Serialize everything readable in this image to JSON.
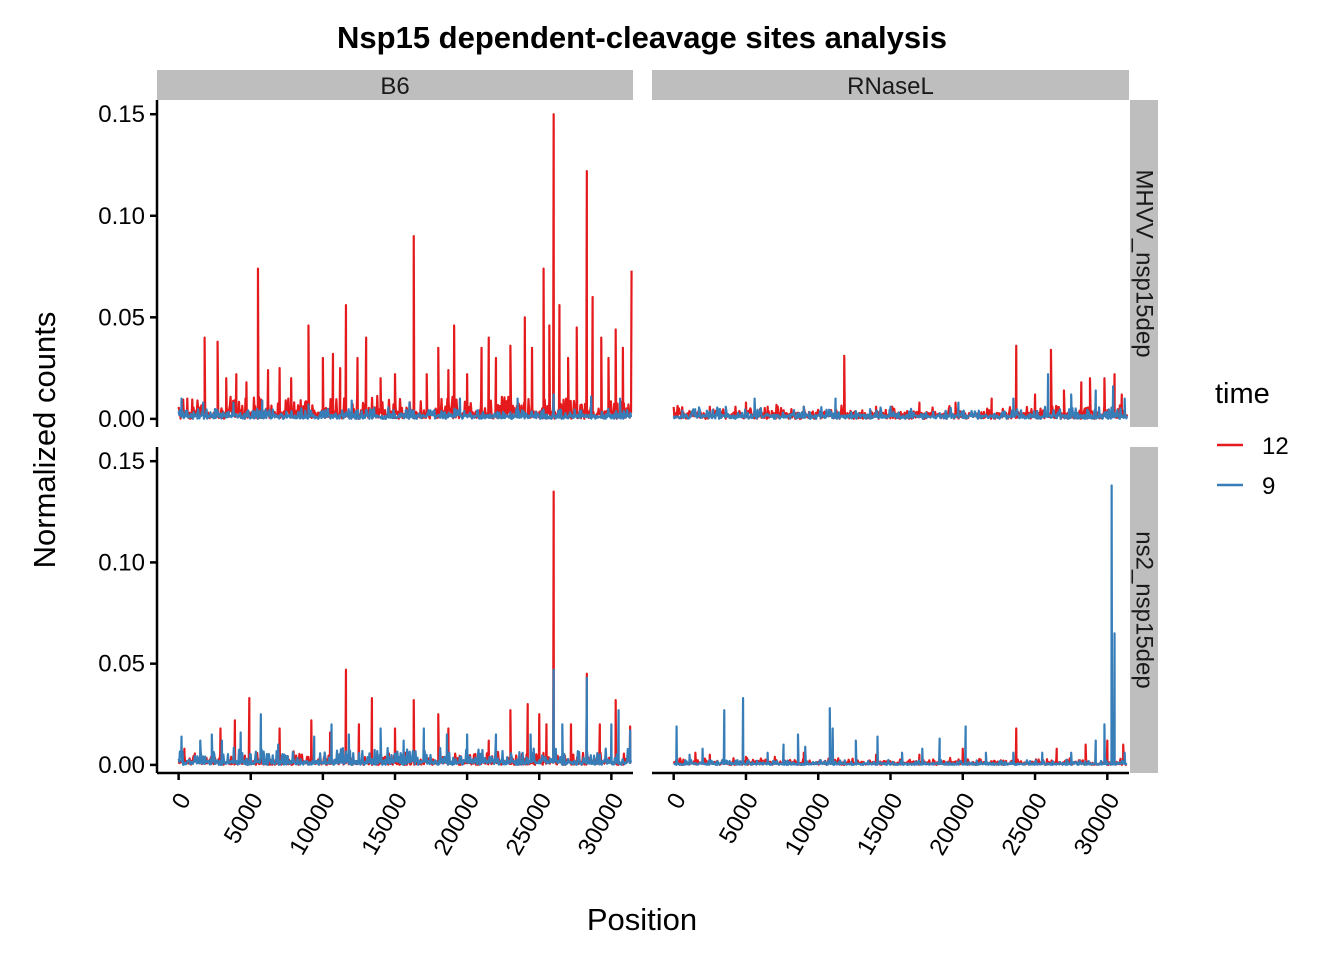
{
  "chart_data": {
    "type": "line",
    "title": "Nsp15 dependent-cleavage sites analysis",
    "xlabel": "Position",
    "ylabel": "Normalized counts",
    "xlim": [
      -1500,
      31500
    ],
    "ylim": [
      -0.004,
      0.157
    ],
    "x_ticks": [
      0,
      5000,
      10000,
      15000,
      20000,
      25000,
      30000
    ],
    "x_tick_labels": [
      "0",
      "5000",
      "10000",
      "15000",
      "20000",
      "25000",
      "30000"
    ],
    "y_ticks": [
      0,
      0.05,
      0.1,
      0.15
    ],
    "y_tick_labels": [
      "0.00",
      "0.05",
      "0.10",
      "0.15"
    ],
    "grid": false,
    "legend": {
      "title": "time",
      "position": "right",
      "items": [
        {
          "label": "12",
          "color": "#e41a1c"
        },
        {
          "label": "9",
          "color": "#377eb8"
        }
      ]
    },
    "columns": [
      "B6",
      "RNaseL"
    ],
    "rows": [
      "MHVV_nsp15dep",
      "ns2_nsp15dep"
    ],
    "panels": [
      {
        "col": "B6",
        "row": "MHVV_nsp15dep",
        "series": [
          {
            "name": "12",
            "color": "#e41a1c",
            "baseline": 0.004,
            "noise": 0.008,
            "peaks": [
              [
                600,
                0.01
              ],
              [
                1800,
                0.04
              ],
              [
                2700,
                0.038
              ],
              [
                3300,
                0.02
              ],
              [
                4000,
                0.022
              ],
              [
                4700,
                0.018
              ],
              [
                5500,
                0.074
              ],
              [
                6200,
                0.024
              ],
              [
                7000,
                0.025
              ],
              [
                7800,
                0.02
              ],
              [
                9000,
                0.046
              ],
              [
                10000,
                0.03
              ],
              [
                10700,
                0.032
              ],
              [
                11200,
                0.025
              ],
              [
                11600,
                0.056
              ],
              [
                12400,
                0.03
              ],
              [
                13000,
                0.04
              ],
              [
                14000,
                0.02
              ],
              [
                15000,
                0.022
              ],
              [
                16300,
                0.09
              ],
              [
                17200,
                0.022
              ],
              [
                18000,
                0.035
              ],
              [
                18700,
                0.024
              ],
              [
                19100,
                0.046
              ],
              [
                20000,
                0.022
              ],
              [
                21000,
                0.035
              ],
              [
                21500,
                0.04
              ],
              [
                22000,
                0.03
              ],
              [
                23000,
                0.036
              ],
              [
                24000,
                0.05
              ],
              [
                24500,
                0.035
              ],
              [
                25300,
                0.074
              ],
              [
                25700,
                0.046
              ],
              [
                26000,
                0.15
              ],
              [
                26400,
                0.056
              ],
              [
                27000,
                0.03
              ],
              [
                27600,
                0.045
              ],
              [
                28300,
                0.122
              ],
              [
                28700,
                0.06
              ],
              [
                29300,
                0.04
              ],
              [
                29800,
                0.03
              ],
              [
                30300,
                0.044
              ],
              [
                30800,
                0.035
              ],
              [
                31400,
                0.073
              ]
            ]
          },
          {
            "name": "9",
            "color": "#377eb8",
            "baseline": 0.002,
            "noise": 0.004,
            "peaks": [
              [
                200,
                0.01
              ],
              [
                1700,
                0.008
              ],
              [
                3800,
                0.008
              ],
              [
                5800,
                0.009
              ],
              [
                9000,
                0.007
              ],
              [
                12000,
                0.009
              ],
              [
                16000,
                0.008
              ],
              [
                19500,
                0.01
              ],
              [
                23500,
                0.01
              ],
              [
                26000,
                0.012
              ],
              [
                28600,
                0.011
              ],
              [
                30600,
                0.01
              ]
            ]
          }
        ]
      },
      {
        "col": "RNaseL",
        "row": "MHVV_nsp15dep",
        "series": [
          {
            "name": "12",
            "color": "#e41a1c",
            "baseline": 0.003,
            "noise": 0.004,
            "peaks": [
              [
                600,
                0.005
              ],
              [
                2500,
                0.006
              ],
              [
                5000,
                0.008
              ],
              [
                6500,
                0.006
              ],
              [
                9000,
                0.006
              ],
              [
                11800,
                0.031
              ],
              [
                14000,
                0.006
              ],
              [
                17000,
                0.008
              ],
              [
                19500,
                0.008
              ],
              [
                22000,
                0.01
              ],
              [
                23700,
                0.036
              ],
              [
                25000,
                0.012
              ],
              [
                26100,
                0.034
              ],
              [
                27000,
                0.014
              ],
              [
                28200,
                0.018
              ],
              [
                28800,
                0.02
              ],
              [
                29800,
                0.02
              ],
              [
                30500,
                0.022
              ],
              [
                31000,
                0.012
              ]
            ]
          },
          {
            "name": "9",
            "color": "#377eb8",
            "baseline": 0.002,
            "noise": 0.004,
            "peaks": [
              [
                600,
                0.004
              ],
              [
                3600,
                0.006
              ],
              [
                5600,
                0.01
              ],
              [
                9000,
                0.006
              ],
              [
                11200,
                0.01
              ],
              [
                15000,
                0.006
              ],
              [
                19700,
                0.008
              ],
              [
                23500,
                0.01
              ],
              [
                25900,
                0.022
              ],
              [
                27500,
                0.012
              ],
              [
                29200,
                0.014
              ],
              [
                30400,
                0.016
              ],
              [
                31200,
                0.01
              ]
            ]
          }
        ]
      },
      {
        "col": "B6",
        "row": "ns2_nsp15dep",
        "series": [
          {
            "name": "12",
            "color": "#e41a1c",
            "baseline": 0.002,
            "noise": 0.005,
            "peaks": [
              [
                400,
                0.008
              ],
              [
                2900,
                0.018
              ],
              [
                3900,
                0.022
              ],
              [
                4900,
                0.033
              ],
              [
                7000,
                0.018
              ],
              [
                9200,
                0.022
              ],
              [
                10500,
                0.016
              ],
              [
                11600,
                0.047
              ],
              [
                12500,
                0.02
              ],
              [
                13400,
                0.033
              ],
              [
                15000,
                0.018
              ],
              [
                16300,
                0.032
              ],
              [
                18000,
                0.025
              ],
              [
                18700,
                0.018
              ],
              [
                21500,
                0.012
              ],
              [
                23000,
                0.027
              ],
              [
                24200,
                0.03
              ],
              [
                25000,
                0.025
              ],
              [
                25500,
                0.02
              ],
              [
                26000,
                0.135
              ],
              [
                27200,
                0.02
              ],
              [
                28300,
                0.045
              ],
              [
                29200,
                0.02
              ],
              [
                30300,
                0.032
              ],
              [
                31300,
                0.019
              ]
            ]
          },
          {
            "name": "9",
            "color": "#377eb8",
            "baseline": 0.002,
            "noise": 0.007,
            "peaks": [
              [
                200,
                0.014
              ],
              [
                1500,
                0.012
              ],
              [
                2300,
                0.015
              ],
              [
                3000,
                0.012
              ],
              [
                4300,
                0.016
              ],
              [
                5700,
                0.025
              ],
              [
                6900,
                0.01
              ],
              [
                9400,
                0.014
              ],
              [
                10600,
                0.02
              ],
              [
                11800,
                0.015
              ],
              [
                14000,
                0.018
              ],
              [
                15600,
                0.012
              ],
              [
                17000,
                0.018
              ],
              [
                18600,
                0.015
              ],
              [
                20000,
                0.015
              ],
              [
                22000,
                0.015
              ],
              [
                24400,
                0.015
              ],
              [
                26000,
                0.047
              ],
              [
                26600,
                0.02
              ],
              [
                28300,
                0.043
              ],
              [
                30000,
                0.02
              ],
              [
                30500,
                0.027
              ],
              [
                31300,
                0.017
              ]
            ]
          }
        ]
      },
      {
        "col": "RNaseL",
        "row": "ns2_nsp15dep",
        "series": [
          {
            "name": "12",
            "color": "#e41a1c",
            "baseline": 0.0015,
            "noise": 0.002,
            "peaks": [
              [
                400,
                0.003
              ],
              [
                1500,
                0.006
              ],
              [
                2500,
                0.005
              ],
              [
                5000,
                0.004
              ],
              [
                7000,
                0.004
              ],
              [
                9000,
                0.006
              ],
              [
                11000,
                0.013
              ],
              [
                14000,
                0.005
              ],
              [
                17000,
                0.005
              ],
              [
                20000,
                0.008
              ],
              [
                23700,
                0.018
              ],
              [
                26500,
                0.008
              ],
              [
                28500,
                0.01
              ],
              [
                30000,
                0.012
              ],
              [
                31100,
                0.01
              ]
            ]
          },
          {
            "name": "9",
            "color": "#377eb8",
            "baseline": 0.0008,
            "noise": 0.002,
            "peaks": [
              [
                200,
                0.019
              ],
              [
                1100,
                0.005
              ],
              [
                2000,
                0.008
              ],
              [
                3500,
                0.027
              ],
              [
                4800,
                0.033
              ],
              [
                6500,
                0.006
              ],
              [
                7600,
                0.01
              ],
              [
                8600,
                0.015
              ],
              [
                9100,
                0.009
              ],
              [
                10800,
                0.028
              ],
              [
                11000,
                0.018
              ],
              [
                12600,
                0.012
              ],
              [
                14100,
                0.014
              ],
              [
                15800,
                0.006
              ],
              [
                17200,
                0.008
              ],
              [
                18400,
                0.013
              ],
              [
                20200,
                0.019
              ],
              [
                21600,
                0.006
              ],
              [
                23500,
                0.006
              ],
              [
                25500,
                0.006
              ],
              [
                27500,
                0.006
              ],
              [
                29200,
                0.012
              ],
              [
                29800,
                0.02
              ],
              [
                30300,
                0.138
              ],
              [
                30500,
                0.065
              ],
              [
                31200,
                0.006
              ]
            ]
          }
        ]
      }
    ]
  }
}
